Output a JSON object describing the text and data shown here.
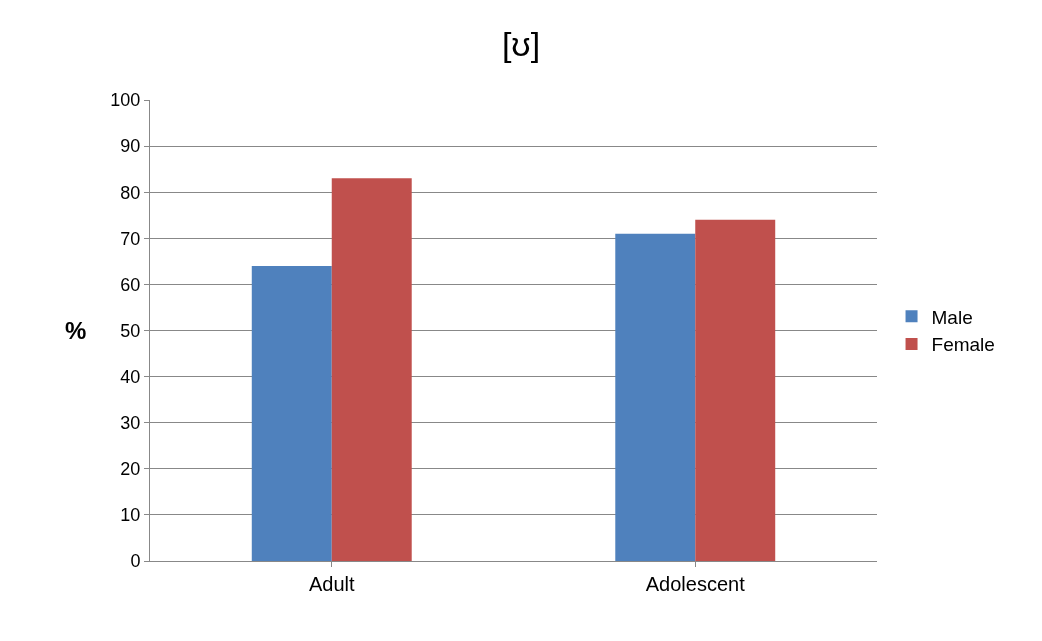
{
  "chart_data": {
    "type": "bar",
    "title": "[ʊ]",
    "ylabel": "%",
    "categories": [
      "Adult",
      "Adolescent"
    ],
    "series": [
      {
        "name": "Male",
        "color": "#4f81bd",
        "values": [
          64,
          71
        ]
      },
      {
        "name": "Female",
        "color": "#c0504d",
        "values": [
          83,
          74
        ]
      }
    ],
    "ylim": [
      0,
      100
    ],
    "yticks": [
      0,
      10,
      20,
      30,
      40,
      50,
      60,
      70,
      80,
      90,
      100
    ],
    "grid": "y",
    "legend": "right"
  }
}
